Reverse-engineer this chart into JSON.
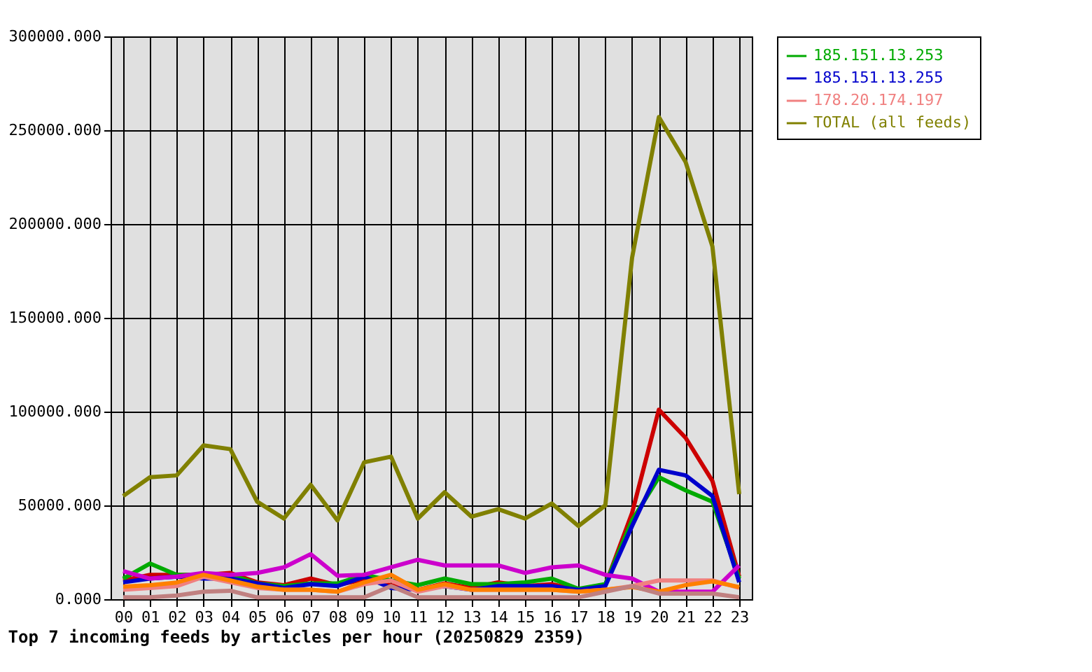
{
  "chart_data": {
    "type": "line",
    "title": "Top 7 incoming feeds by articles per hour (20250829 2359)",
    "categories": [
      "00",
      "01",
      "02",
      "03",
      "04",
      "05",
      "06",
      "07",
      "08",
      "09",
      "10",
      "11",
      "12",
      "13",
      "14",
      "15",
      "16",
      "17",
      "18",
      "19",
      "20",
      "21",
      "22",
      "23"
    ],
    "ylim": [
      0,
      300000
    ],
    "yticks": [
      {
        "value": 0,
        "label": "0.000"
      },
      {
        "value": 50000,
        "label": "50000.000"
      },
      {
        "value": 100000,
        "label": "100000.000"
      },
      {
        "value": 150000,
        "label": "150000.000"
      },
      {
        "value": 200000,
        "label": "200000.000"
      },
      {
        "value": 250000,
        "label": "250000.000"
      },
      {
        "value": 300000,
        "label": "300000.000"
      }
    ],
    "grid": true,
    "legend": "right",
    "series": [
      {
        "color": "#cc0000",
        "values": [
          10000,
          13000,
          13000,
          13000,
          14000,
          9000,
          7500,
          11000,
          7500,
          10500,
          7500,
          5000,
          8400,
          6000,
          9000,
          7000,
          8000,
          5000,
          7500,
          46000,
          101000,
          86000,
          63000,
          12000
        ]
      },
      {
        "name": "185.151.13.253",
        "color": "#00aa00",
        "values": [
          11000,
          19000,
          13000,
          13000,
          13000,
          8400,
          7000,
          8400,
          8400,
          13000,
          10000,
          7500,
          11000,
          8000,
          8000,
          9000,
          11000,
          5500,
          8000,
          42000,
          65000,
          58000,
          52000,
          11000
        ]
      },
      {
        "name": "185.151.13.255",
        "color": "#0000cc",
        "values": [
          9000,
          11000,
          12000,
          11000,
          11000,
          8400,
          6000,
          8000,
          7000,
          12000,
          6000,
          5000,
          7000,
          5000,
          7000,
          7000,
          7000,
          5000,
          7000,
          39000,
          69000,
          66000,
          55000,
          9000
        ]
      },
      {
        "color": "#cc00cc",
        "values": [
          15000,
          11000,
          12000,
          14000,
          13000,
          14000,
          17000,
          24000,
          12500,
          13000,
          17000,
          21000,
          18000,
          18000,
          18000,
          14000,
          17000,
          18000,
          13000,
          11000,
          4000,
          4000,
          4000,
          18000
        ]
      },
      {
        "name": "178.20.174.197",
        "color": "#f08080",
        "values": [
          5000,
          6000,
          7000,
          12000,
          9000,
          6000,
          5000,
          5000,
          4000,
          8000,
          10000,
          4000,
          7000,
          5000,
          5000,
          5000,
          5000,
          4000,
          5000,
          7000,
          10000,
          10000,
          10000,
          6000
        ]
      },
      {
        "color": "#ff8000",
        "values": [
          6700,
          7500,
          8900,
          13000,
          10000,
          6700,
          5000,
          5000,
          4000,
          9000,
          13000,
          5000,
          8000,
          5000,
          5000,
          5000,
          5000,
          4000,
          5000,
          6500,
          4000,
          7500,
          9500,
          6500
        ]
      },
      {
        "color": "#c08080",
        "values": [
          1000,
          1000,
          2000,
          4000,
          4500,
          1000,
          1000,
          1000,
          1000,
          1000,
          7000,
          1000,
          1000,
          1000,
          1000,
          1000,
          1000,
          1000,
          4000,
          7000,
          3000,
          3000,
          3000,
          1000
        ]
      },
      {
        "name": "TOTAL (all feeds)",
        "color": "#808000",
        "values": [
          55000,
          65000,
          66000,
          82000,
          80000,
          52000,
          43000,
          61000,
          42000,
          73000,
          76000,
          43000,
          57000,
          44000,
          48000,
          43000,
          51000,
          39000,
          50000,
          182000,
          257000,
          233000,
          188000,
          56000
        ]
      }
    ]
  }
}
